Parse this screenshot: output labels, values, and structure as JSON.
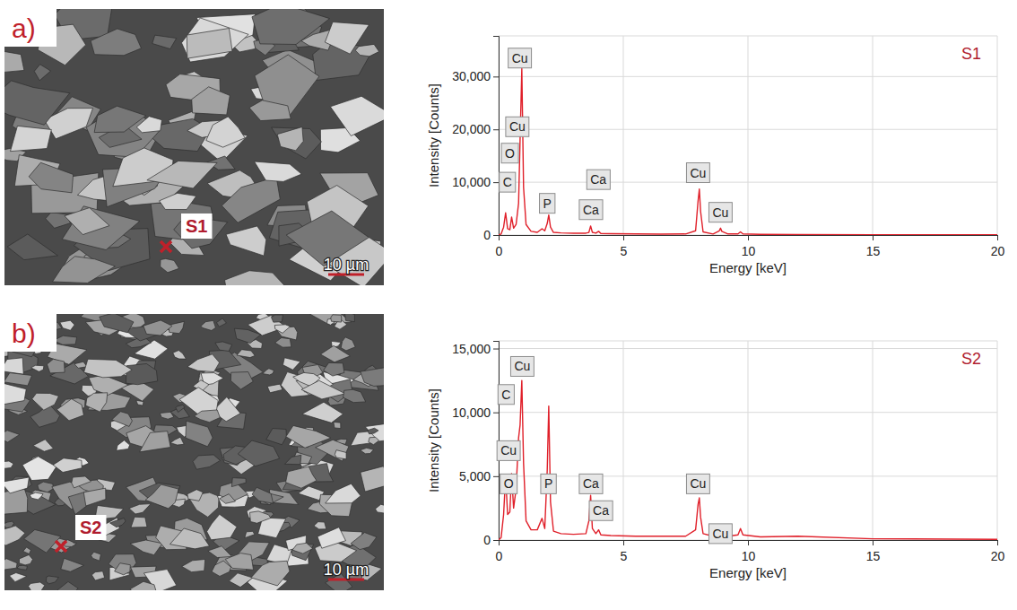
{
  "panels": [
    {
      "letter": "a)",
      "spot": "S1",
      "scale_bar": "10 µm"
    },
    {
      "letter": "b)",
      "spot": "S2",
      "scale_bar": "10 µm"
    }
  ],
  "chart_data": [
    {
      "type": "line",
      "title": "S1",
      "x_label": "Energy [keV]",
      "y_label": "Intensity [Counts]",
      "color": "#e0202a",
      "grid": true,
      "xlim": [
        0,
        20
      ],
      "xticks": [
        0,
        5,
        10,
        15,
        20
      ],
      "ylim": [
        0,
        37700
      ],
      "yticks": [
        0,
        {
          "value": 10000,
          "label": "10,000"
        },
        {
          "value": 20000,
          "label": "20,000"
        },
        {
          "value": 30000,
          "label": "30,000"
        }
      ],
      "x": [
        0,
        0.1,
        0.2,
        0.28,
        0.36,
        0.45,
        0.52,
        0.6,
        0.7,
        0.8,
        0.86,
        0.93,
        1.0,
        1.1,
        1.3,
        1.55,
        1.74,
        1.85,
        1.95,
        2.01,
        2.08,
        2.2,
        2.5,
        3.0,
        3.5,
        3.62,
        3.69,
        3.76,
        3.9,
        4.01,
        4.1,
        4.5,
        5.5,
        6.5,
        7.5,
        7.9,
        8.0,
        8.05,
        8.1,
        8.2,
        8.6,
        8.85,
        8.9,
        8.95,
        9.2,
        9.6,
        9.7,
        9.8,
        10.5,
        12,
        15,
        20
      ],
      "values": [
        0,
        200,
        1500,
        4200,
        1200,
        1000,
        3400,
        1300,
        2000,
        6000,
        18000,
        31500,
        9000,
        2000,
        700,
        500,
        1200,
        800,
        2200,
        3800,
        1500,
        500,
        400,
        350,
        350,
        500,
        1700,
        500,
        350,
        700,
        300,
        250,
        200,
        180,
        200,
        800,
        6500,
        8700,
        4500,
        600,
        200,
        800,
        1300,
        700,
        200,
        200,
        600,
        200,
        120,
        80,
        50,
        30
      ],
      "annotations": [
        {
          "text": "Cu",
          "x": 0.85,
          "y": 33500
        },
        {
          "text": "Cu",
          "x": 0.75,
          "y": 20500
        },
        {
          "text": "O",
          "x": 0.45,
          "y": 15500
        },
        {
          "text": "C",
          "x": 0.35,
          "y": 10000
        },
        {
          "text": "P",
          "x": 1.95,
          "y": 6000
        },
        {
          "text": "Ca",
          "x": 4.0,
          "y": 10500
        },
        {
          "text": "Ca",
          "x": 3.7,
          "y": 4800
        },
        {
          "text": "Cu",
          "x": 8.0,
          "y": 11800
        },
        {
          "text": "Cu",
          "x": 8.9,
          "y": 4300
        }
      ]
    },
    {
      "type": "line",
      "title": "S2",
      "x_label": "Energy [keV]",
      "y_label": "Intensity [Counts]",
      "color": "#e0202a",
      "grid": true,
      "xlim": [
        0,
        20
      ],
      "xticks": [
        0,
        5,
        10,
        15,
        20
      ],
      "ylim": [
        0,
        15600
      ],
      "yticks": [
        0,
        {
          "value": 5000,
          "label": "5,000"
        },
        {
          "value": 10000,
          "label": "10,000"
        },
        {
          "value": 15000,
          "label": "15,000"
        }
      ],
      "x": [
        0,
        0.1,
        0.2,
        0.28,
        0.36,
        0.45,
        0.52,
        0.6,
        0.7,
        0.8,
        0.86,
        0.93,
        1.0,
        1.1,
        1.3,
        1.55,
        1.74,
        1.85,
        1.95,
        2.01,
        2.08,
        2.2,
        2.5,
        3.0,
        3.5,
        3.62,
        3.69,
        3.76,
        3.9,
        4.01,
        4.1,
        4.5,
        5.5,
        6.5,
        7.5,
        7.9,
        8.0,
        8.05,
        8.1,
        8.2,
        8.6,
        8.85,
        8.9,
        8.95,
        9.2,
        9.6,
        9.7,
        9.8,
        10.5,
        12,
        15,
        20
      ],
      "values": [
        0,
        200,
        2000,
        5000,
        2000,
        2200,
        5200,
        2500,
        4000,
        8000,
        9000,
        12500,
        6000,
        1500,
        800,
        800,
        1700,
        900,
        5500,
        10500,
        3000,
        700,
        500,
        450,
        500,
        1500,
        3500,
        900,
        500,
        800,
        400,
        350,
        300,
        300,
        300,
        800,
        2800,
        3300,
        1800,
        500,
        300,
        500,
        600,
        400,
        300,
        400,
        900,
        400,
        250,
        300,
        100,
        50
      ],
      "annotations": [
        {
          "text": "Cu",
          "x": 0.95,
          "y": 13600
        },
        {
          "text": "C",
          "x": 0.3,
          "y": 11400
        },
        {
          "text": "Cu",
          "x": 0.4,
          "y": 7000
        },
        {
          "text": "O",
          "x": 0.4,
          "y": 4400
        },
        {
          "text": "P",
          "x": 2.0,
          "y": 4400
        },
        {
          "text": "Ca",
          "x": 3.7,
          "y": 4400
        },
        {
          "text": "Ca",
          "x": 4.1,
          "y": 2300
        },
        {
          "text": "Cu",
          "x": 8.0,
          "y": 4400
        },
        {
          "text": "Cu",
          "x": 8.9,
          "y": 500
        }
      ]
    }
  ]
}
